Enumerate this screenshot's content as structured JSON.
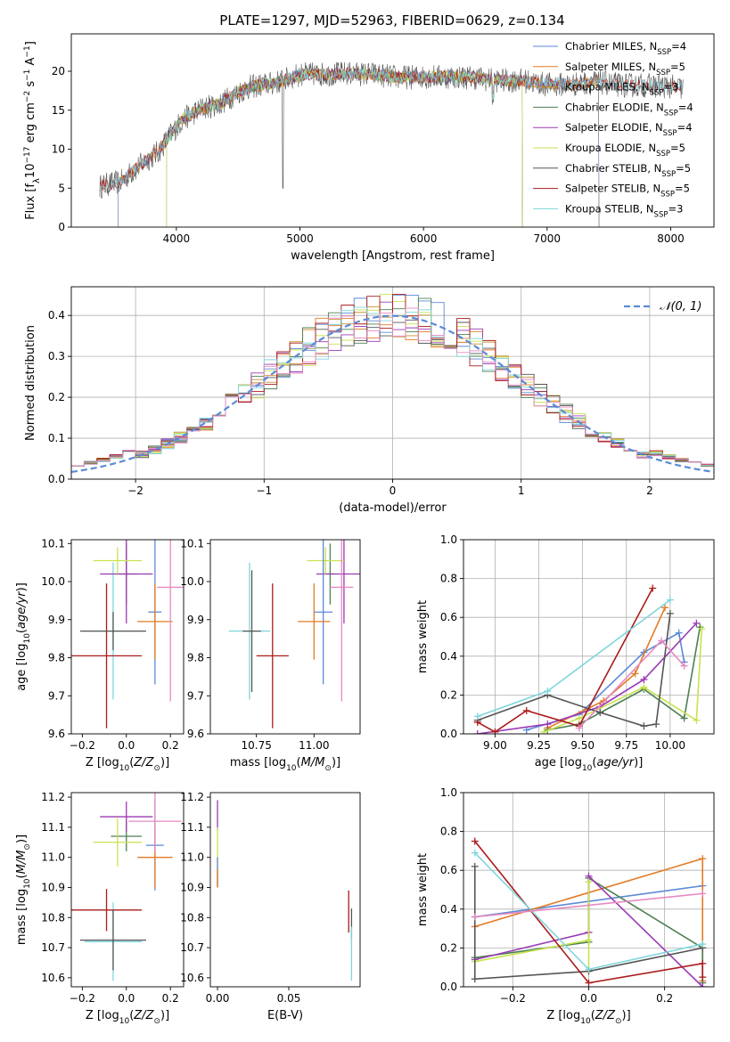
{
  "figure_title": "PLATE=1297, MJD=52963, FIBERID=0629, z=0.134",
  "colors": {
    "Chabrier MILES": "#5b8ad6",
    "Salpeter MILES": "#e27b26",
    "Kroupa MILES": "#c79332",
    "Chabrier ELODIE": "#4e8052",
    "Salpeter ELODIE": "#9c3ab4",
    "Kroupa ELODIE": "#c8e24e",
    "Chabrier STELIB": "#555555",
    "Salpeter STELIB": "#aa1b1b",
    "Kroupa STELIB": "#7fd6dc",
    "Pink": "#e58ac2"
  },
  "chart_data": [
    {
      "id": "spectrum",
      "type": "line",
      "xlabel": "wavelength [Angstrom, rest frame]",
      "ylabel": "Flux [f_λ10^-17 erg cm^-2 s^-1 A^-1]",
      "xlim": [
        3150,
        8350
      ],
      "ylim": [
        0,
        24.8
      ],
      "xticks": [
        4000,
        5000,
        6000,
        7000,
        8000
      ],
      "yticks": [
        0,
        5,
        10,
        15,
        20
      ],
      "legend_position": "upper-right",
      "continuum": [
        [
          3380,
          5.2
        ],
        [
          3450,
          5.5
        ],
        [
          3550,
          5.8
        ],
        [
          3650,
          7.2
        ],
        [
          3750,
          8.5
        ],
        [
          3850,
          9.6
        ],
        [
          3950,
          11.8
        ],
        [
          4050,
          13.8
        ],
        [
          4200,
          15.2
        ],
        [
          4350,
          15.8
        ],
        [
          4500,
          17.3
        ],
        [
          4600,
          18.0
        ],
        [
          4800,
          18.5
        ],
        [
          4900,
          19.0
        ],
        [
          5000,
          19.6
        ],
        [
          5200,
          19.6
        ],
        [
          5400,
          19.7
        ],
        [
          5600,
          19.6
        ],
        [
          5800,
          19.2
        ],
        [
          6000,
          19.3
        ],
        [
          6200,
          19.3
        ],
        [
          6400,
          19.2
        ],
        [
          6600,
          18.8
        ],
        [
          6800,
          18.8
        ],
        [
          7000,
          18.3
        ],
        [
          7200,
          18.3
        ],
        [
          7400,
          18.6
        ],
        [
          7600,
          18.2
        ],
        [
          7800,
          18.2
        ],
        [
          8000,
          18.0
        ],
        [
          8100,
          17.8
        ]
      ],
      "series": [
        {
          "name": "Chabrier MILES, N_SSP=4",
          "label_pre": "Chabrier MILES, N",
          "label_sub": "SSP",
          "label_post": "=4"
        },
        {
          "name": "Salpeter MILES, N_SSP=5",
          "label_pre": "Salpeter MILES, N",
          "label_sub": "SSP",
          "label_post": "=5"
        },
        {
          "name": "Kroupa MILES, N_SSP=3",
          "label_pre": "Kroupa MILES, N",
          "label_sub": "SSP",
          "label_post": "=3"
        },
        {
          "name": "Chabrier ELODIE, N_SSP=4",
          "label_pre": "Chabrier ELODIE, N",
          "label_sub": "SSP",
          "label_post": "=4"
        },
        {
          "name": "Salpeter ELODIE, N_SSP=4",
          "label_pre": "Salpeter ELODIE, N",
          "label_sub": "SSP",
          "label_post": "=4"
        },
        {
          "name": "Kroupa ELODIE, N_SSP=5",
          "label_pre": "Kroupa ELODIE, N",
          "label_sub": "SSP",
          "label_post": "=5"
        },
        {
          "name": "Chabrier STELIB, N_SSP=5",
          "label_pre": "Chabrier STELIB, N",
          "label_sub": "SSP",
          "label_post": "=5"
        },
        {
          "name": "Salpeter STELIB, N_SSP=5",
          "label_pre": "Salpeter STELIB, N",
          "label_sub": "SSP",
          "label_post": "=5"
        },
        {
          "name": "Kroupa STELIB, N_SSP=3",
          "label_pre": "Kroupa STELIB, N",
          "label_sub": "SSP",
          "label_post": "=3"
        }
      ]
    },
    {
      "id": "residuals",
      "type": "area",
      "xlabel": "(data-model)/error",
      "ylabel": "Normed distribution",
      "xlim": [
        -2.5,
        2.5
      ],
      "ylim": [
        0,
        0.47
      ],
      "xticks": [
        -2,
        -1,
        0,
        1,
        2
      ],
      "yticks": [
        0.0,
        0.1,
        0.2,
        0.3,
        0.4
      ],
      "grid": true,
      "legend": "N(0,1)",
      "legend_position": "upper-right",
      "hist_x_start": -2.5,
      "bin_width": 0.1
    },
    {
      "id": "age-vs-Z",
      "type": "scatter",
      "xlabel": "Z [log10(Z/Z⊙)]",
      "ylabel": "age [log10(age/yr)]",
      "xlim": [
        -0.25,
        0.26
      ],
      "ylim": [
        9.6,
        10.11
      ],
      "xticks": [
        -0.2,
        0.0,
        0.2
      ],
      "yticks": [
        9.6,
        9.7,
        9.8,
        9.9,
        10.0,
        10.1
      ],
      "points": [
        {
          "color": "Kroupa STELIB",
          "x": -0.06,
          "xerr": 0.13,
          "y": 9.87,
          "yerr": 0.18
        },
        {
          "color": "Salpeter STELIB",
          "x": -0.09,
          "xerr": 0.16,
          "y": 9.805,
          "yerr": 0.19
        },
        {
          "color": "Chabrier STELIB",
          "x": -0.06,
          "xerr": 0.15,
          "y": 9.87,
          "yerr": 0.05
        },
        {
          "color": "Chabrier ELODIE",
          "x": 0.0,
          "xerr": 0.05,
          "y": 10.02,
          "yerr": 0.08
        },
        {
          "color": "Salpeter ELODIE",
          "x": 0.0,
          "xerr": 0.12,
          "y": 10.02,
          "yerr": 0.13
        },
        {
          "color": "Kroupa ELODIE",
          "x": -0.04,
          "xerr": 0.11,
          "y": 10.055,
          "yerr": 0.035
        },
        {
          "color": "Chabrier MILES",
          "x": 0.13,
          "xerr": 0.03,
          "y": 9.92,
          "yerr": 0.19
        },
        {
          "color": "Salpeter MILES",
          "x": 0.13,
          "xerr": 0.08,
          "y": 9.895,
          "yerr": 0.1
        },
        {
          "color": "Pink",
          "x": 0.2,
          "xerr": 0.06,
          "y": 9.985,
          "yerr": 0.3
        }
      ]
    },
    {
      "id": "age-vs-mass",
      "type": "scatter",
      "xlabel": "mass [log10(M/M⊙)]",
      "ylabel": "",
      "xlim": [
        10.55,
        11.2
      ],
      "ylim": [
        9.6,
        10.11
      ],
      "xticks": [
        10.75,
        11.0
      ],
      "yticks": [
        9.6,
        9.7,
        9.8,
        9.9,
        10.0,
        10.1
      ],
      "points": [
        {
          "color": "Kroupa STELIB",
          "x": 10.72,
          "xerr": 0.09,
          "y": 9.87,
          "yerr": 0.18
        },
        {
          "color": "Salpeter STELIB",
          "x": 10.82,
          "xerr": 0.07,
          "y": 9.805,
          "yerr": 0.19
        },
        {
          "color": "Chabrier STELIB",
          "x": 10.73,
          "xerr": 0.04,
          "y": 9.87,
          "yerr": 0.16
        },
        {
          "color": "Chabrier ELODIE",
          "x": 11.07,
          "xerr": 0.02,
          "y": 10.02,
          "yerr": 0.08
        },
        {
          "color": "Salpeter ELODIE",
          "x": 11.13,
          "xerr": 0.12,
          "y": 10.02,
          "yerr": 0.13
        },
        {
          "color": "Kroupa ELODIE",
          "x": 11.05,
          "xerr": 0.08,
          "y": 10.055,
          "yerr": 0.035
        },
        {
          "color": "Chabrier MILES",
          "x": 11.04,
          "xerr": 0.04,
          "y": 9.92,
          "yerr": 0.19
        },
        {
          "color": "Salpeter MILES",
          "x": 11.0,
          "xerr": 0.07,
          "y": 9.895,
          "yerr": 0.1
        },
        {
          "color": "Pink",
          "x": 11.12,
          "xerr": 0.05,
          "y": 9.985,
          "yerr": 0.3
        }
      ]
    },
    {
      "id": "weight-vs-age",
      "type": "line",
      "xlabel": "age [log10(age/yr)]",
      "ylabel": "mass weight",
      "xlim": [
        8.82,
        10.25
      ],
      "ylim": [
        0,
        1.0
      ],
      "xticks": [
        9.0,
        9.25,
        9.5,
        9.75,
        10.0
      ],
      "yticks": [
        0.0,
        0.2,
        0.4,
        0.6,
        0.8,
        1.0
      ],
      "grid": true,
      "series": [
        {
          "color": "Chabrier MILES",
          "points": [
            [
              9.18,
              0.02
            ],
            [
              9.48,
              0.1
            ],
            [
              9.85,
              0.42
            ],
            [
              10.05,
              0.52
            ],
            [
              10.08,
              0.37
            ]
          ]
        },
        {
          "color": "Salpeter MILES",
          "points": [
            [
              9.3,
              0.03
            ],
            [
              9.62,
              0.17
            ],
            [
              9.8,
              0.31
            ],
            [
              9.97,
              0.65
            ]
          ]
        },
        {
          "color": "Chabrier ELODIE",
          "points": [
            [
              9.3,
              0.02
            ],
            [
              9.48,
              0.05
            ],
            [
              9.85,
              0.23
            ],
            [
              10.08,
              0.08
            ],
            [
              10.17,
              0.55
            ]
          ]
        },
        {
          "color": "Salpeter ELODIE",
          "points": [
            [
              8.9,
              0.0
            ],
            [
              9.3,
              0.05
            ],
            [
              9.6,
              0.14
            ],
            [
              9.85,
              0.28
            ],
            [
              10.15,
              0.57
            ]
          ]
        },
        {
          "color": "Kroupa ELODIE",
          "points": [
            [
              9.28,
              0.01
            ],
            [
              9.48,
              0.08
            ],
            [
              9.85,
              0.24
            ],
            [
              10.15,
              0.07
            ],
            [
              10.18,
              0.54
            ]
          ]
        },
        {
          "color": "Chabrier STELIB",
          "points": [
            [
              8.9,
              0.07
            ],
            [
              9.3,
              0.2
            ],
            [
              9.6,
              0.11
            ],
            [
              9.85,
              0.04
            ],
            [
              9.92,
              0.05
            ],
            [
              10.0,
              0.62
            ]
          ]
        },
        {
          "color": "Salpeter STELIB",
          "points": [
            [
              8.9,
              0.06
            ],
            [
              9.0,
              0.01
            ],
            [
              9.18,
              0.12
            ],
            [
              9.48,
              0.04
            ],
            [
              9.9,
              0.75
            ]
          ]
        },
        {
          "color": "Kroupa STELIB",
          "points": [
            [
              8.9,
              0.09
            ],
            [
              9.3,
              0.22
            ],
            [
              10.0,
              0.69
            ]
          ]
        },
        {
          "color": "Pink",
          "points": [
            [
              9.48,
              0.03
            ],
            [
              9.95,
              0.48
            ],
            [
              10.08,
              0.35
            ]
          ]
        }
      ]
    },
    {
      "id": "mass-vs-Z",
      "type": "scatter",
      "xlabel": "Z [log10(Z/Z⊙)]",
      "ylabel": "mass [log10(M/M⊙)]",
      "xlim": [
        -0.25,
        0.26
      ],
      "ylim": [
        10.57,
        11.215
      ],
      "xticks": [
        -0.2,
        0.0,
        0.2
      ],
      "yticks": [
        10.6,
        10.7,
        10.8,
        10.9,
        11.0,
        11.1,
        11.2
      ],
      "points": [
        {
          "color": "Kroupa STELIB",
          "x": -0.06,
          "xerr": 0.13,
          "y": 10.72,
          "yerr": 0.13
        },
        {
          "color": "Salpeter STELIB",
          "x": -0.09,
          "xerr": 0.16,
          "y": 10.825,
          "yerr": 0.07
        },
        {
          "color": "Chabrier STELIB",
          "x": -0.06,
          "xerr": 0.15,
          "y": 10.725,
          "yerr": 0.1
        },
        {
          "color": "Chabrier ELODIE",
          "x": 0.0,
          "xerr": 0.07,
          "y": 11.07,
          "yerr": 0.05
        },
        {
          "color": "Salpeter ELODIE",
          "x": 0.0,
          "xerr": 0.12,
          "y": 11.135,
          "yerr": 0.05
        },
        {
          "color": "Kroupa ELODIE",
          "x": -0.04,
          "xerr": 0.11,
          "y": 11.05,
          "yerr": 0.08
        },
        {
          "color": "Chabrier MILES",
          "x": 0.13,
          "xerr": 0.04,
          "y": 11.04,
          "yerr": 0.15
        },
        {
          "color": "Salpeter MILES",
          "x": 0.13,
          "xerr": 0.08,
          "y": 11.0,
          "yerr": 0.1
        },
        {
          "color": "Pink",
          "x": 0.13,
          "xerr": 0.12,
          "y": 11.12,
          "yerr": 0.1
        }
      ]
    },
    {
      "id": "mass-vs-EBV",
      "type": "scatter",
      "xlabel": "E(B-V)",
      "ylabel": "",
      "xlim": [
        -0.005,
        0.1
      ],
      "ylim": [
        10.57,
        11.215
      ],
      "xticks": [
        0.0,
        0.05
      ],
      "yticks": [
        10.6,
        10.7,
        10.8,
        10.9,
        11.0,
        11.1,
        11.2
      ],
      "points": [
        {
          "color": "Salpeter ELODIE",
          "x": 0.0,
          "xerr": 0.0,
          "y": 11.14,
          "yerr": 0.05
        },
        {
          "color": "Kroupa ELODIE",
          "x": 0.0,
          "xerr": 0.0,
          "y": 11.0,
          "yerr": 0.1
        },
        {
          "color": "Chabrier MILES",
          "x": 0.0,
          "xerr": 0.0,
          "y": 10.95,
          "yerr": 0.05
        },
        {
          "color": "Salpeter MILES",
          "x": 0.0,
          "xerr": 0.0,
          "y": 10.93,
          "yerr": 0.03
        },
        {
          "color": "Salpeter STELIB",
          "x": 0.092,
          "xerr": 0.0,
          "y": 10.82,
          "yerr": 0.07
        },
        {
          "color": "Chabrier STELIB",
          "x": 0.094,
          "xerr": 0.0,
          "y": 10.78,
          "yerr": 0.05
        },
        {
          "color": "Kroupa STELIB",
          "x": 0.094,
          "xerr": 0.0,
          "y": 10.68,
          "yerr": 0.09
        }
      ]
    },
    {
      "id": "weight-vs-Z",
      "type": "line",
      "xlabel": "Z [log10(Z/Z⊙)]",
      "ylabel": "mass weight",
      "xlim": [
        -0.33,
        0.33
      ],
      "ylim": [
        0,
        1.0
      ],
      "xticks": [
        -0.2,
        0.0,
        0.2
      ],
      "yticks": [
        0.0,
        0.2,
        0.4,
        0.6,
        0.8,
        1.0
      ],
      "grid": true,
      "series": [
        {
          "color": "Chabrier MILES",
          "points": [
            [
              -0.3,
              0.36
            ],
            [
              0.3,
              0.52
            ]
          ]
        },
        {
          "color": "Salpeter MILES",
          "points": [
            [
              -0.3,
              0.31
            ],
            [
              0.3,
              0.66
            ],
            [
              0.3,
              0.03
            ]
          ]
        },
        {
          "color": "Chabrier ELODIE",
          "points": [
            [
              -0.3,
              0.15
            ],
            [
              0.0,
              0.23
            ],
            [
              0.0,
              0.56
            ],
            [
              0.3,
              0.2
            ],
            [
              0.3,
              0.02
            ]
          ]
        },
        {
          "color": "Salpeter ELODIE",
          "points": [
            [
              -0.3,
              0.14
            ],
            [
              0.0,
              0.28
            ],
            [
              0.0,
              0.57
            ],
            [
              0.3,
              0.0
            ]
          ]
        },
        {
          "color": "Kroupa ELODIE",
          "points": [
            [
              -0.3,
              0.13
            ],
            [
              0.0,
              0.24
            ],
            [
              0.0,
              0.54
            ],
            [
              0.0,
              0.08
            ]
          ]
        },
        {
          "color": "Chabrier STELIB",
          "points": [
            [
              -0.3,
              0.62
            ],
            [
              -0.3,
              0.04
            ],
            [
              0.0,
              0.08
            ],
            [
              0.3,
              0.2
            ]
          ]
        },
        {
          "color": "Salpeter STELIB",
          "points": [
            [
              -0.3,
              0.75
            ],
            [
              0.0,
              0.02
            ],
            [
              0.3,
              0.12
            ],
            [
              0.3,
              0.05
            ]
          ]
        },
        {
          "color": "Kroupa STELIB",
          "points": [
            [
              -0.3,
              0.69
            ],
            [
              0.0,
              0.09
            ],
            [
              0.3,
              0.22
            ]
          ]
        },
        {
          "color": "Pink",
          "points": [
            [
              -0.3,
              0.36
            ],
            [
              0.3,
              0.48
            ]
          ]
        }
      ]
    }
  ]
}
